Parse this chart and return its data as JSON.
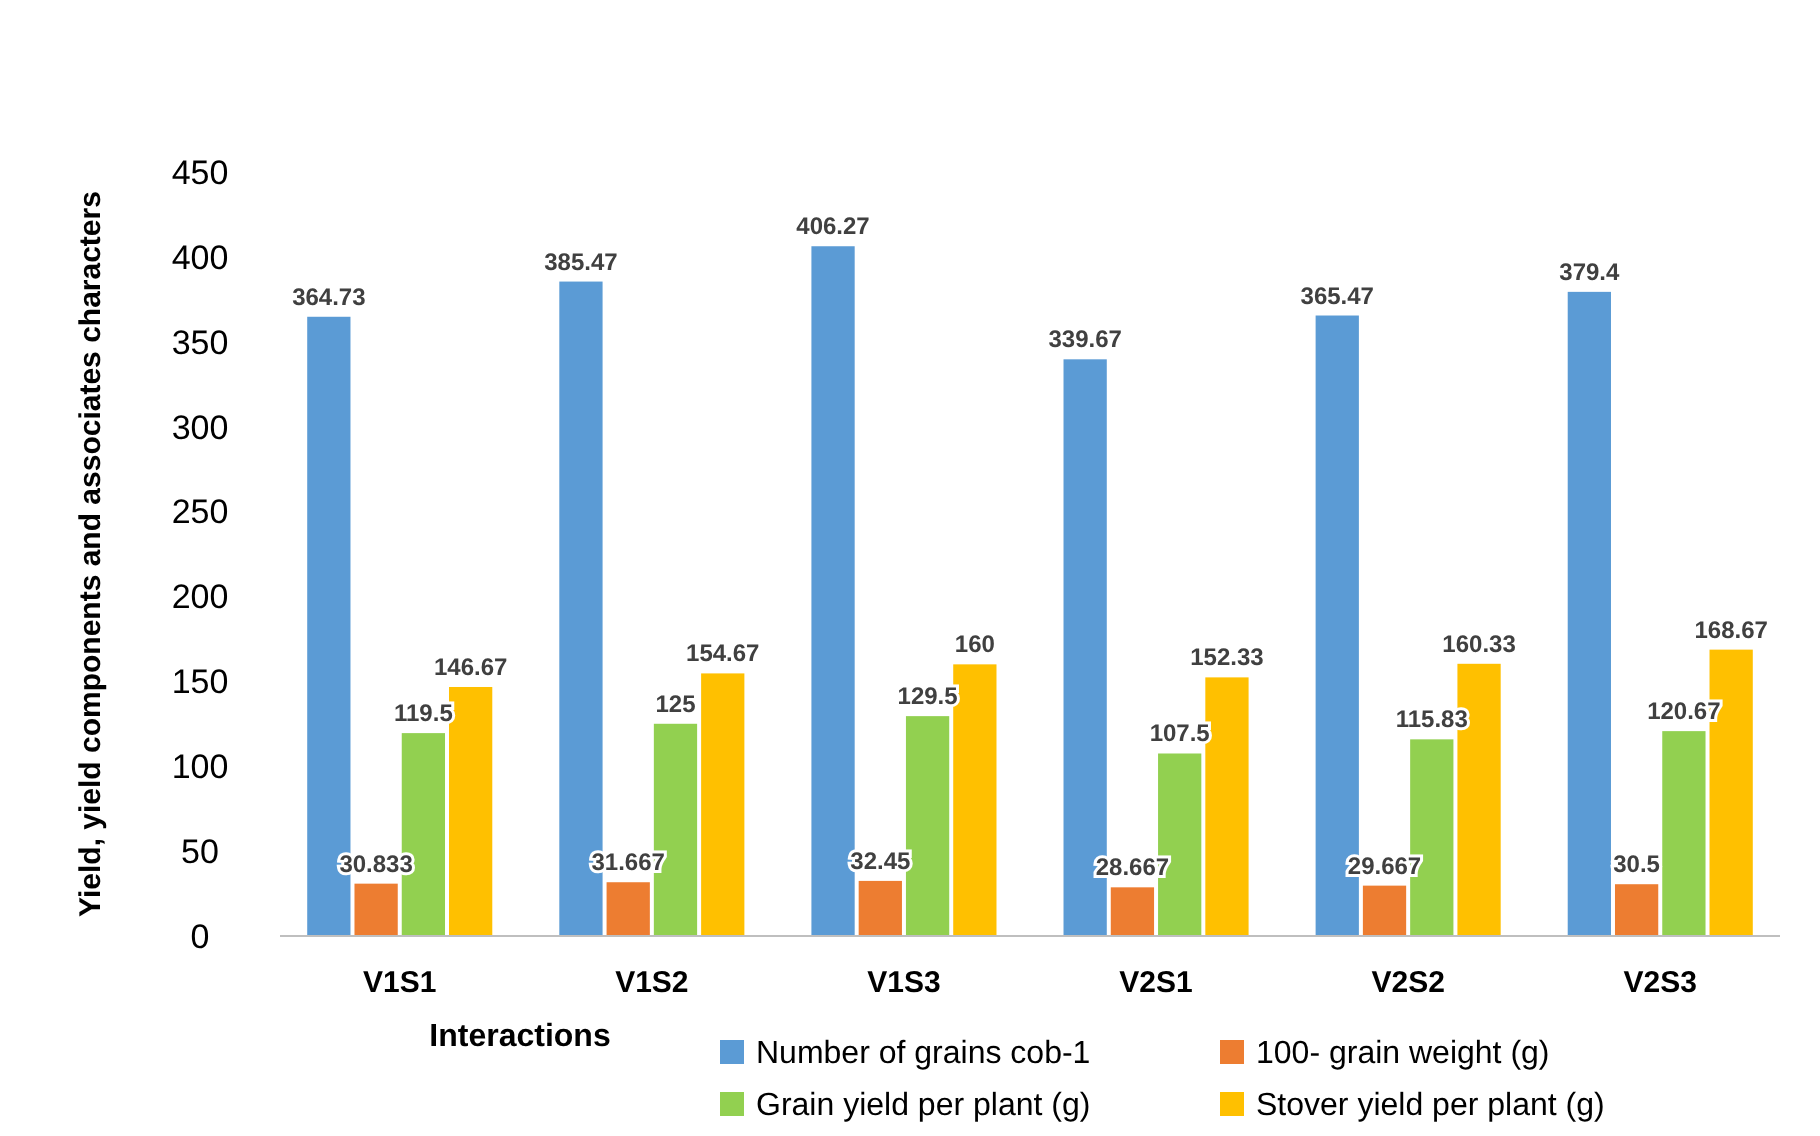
{
  "chart_data": {
    "type": "bar",
    "xlabel": "Interactions",
    "ylabel": "Yield, yield components and associates characters",
    "categories": [
      "V1S1",
      "V1S2",
      "V1S3",
      "V2S1",
      "V2S2",
      "V2S3"
    ],
    "series": [
      {
        "name": "Number of grains cob-1",
        "color": "#5b9bd5",
        "values": [
          364.73,
          385.47,
          406.27,
          339.67,
          365.47,
          379.4
        ]
      },
      {
        "name": "100- grain weight (g)",
        "color": "#ed7d31",
        "values": [
          30.833,
          31.667,
          32.45,
          28.667,
          29.667,
          30.5
        ]
      },
      {
        "name": "Grain yield per plant (g)",
        "color": "#92d050",
        "values": [
          119.5,
          125,
          129.5,
          107.5,
          115.83,
          120.67
        ]
      },
      {
        "name": "Stover yield per plant (g)",
        "color": "#ffc000",
        "values": [
          146.67,
          154.67,
          160,
          152.33,
          160.33,
          168.67
        ]
      }
    ],
    "ylim": [
      0,
      450
    ],
    "yticks": [
      0,
      50,
      100,
      150,
      200,
      250,
      300,
      350,
      400,
      450
    ],
    "data_labels": true,
    "legend": "bottom",
    "grid": false
  }
}
